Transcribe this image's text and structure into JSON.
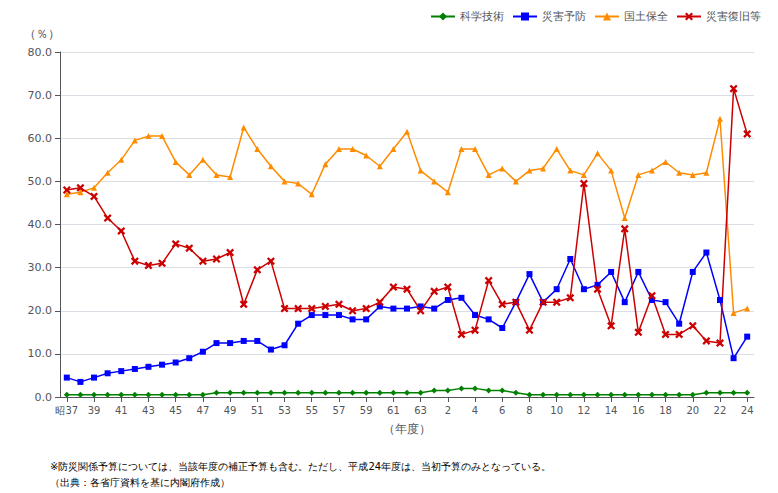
{
  "chart_data": {
    "type": "line",
    "xlabel": "（年度）",
    "ylabel": "（％）",
    "categories": [
      "昭37",
      null,
      "39",
      null,
      "41",
      null,
      "43",
      null,
      "45",
      null,
      "47",
      null,
      "49",
      null,
      "51",
      null,
      "53",
      null,
      "55",
      null,
      "57",
      null,
      "59",
      null,
      "61",
      null,
      "63",
      null,
      "2",
      null,
      "4",
      null,
      "6",
      null,
      "8",
      null,
      "10",
      null,
      "12",
      null,
      "14",
      null,
      "16",
      null,
      "18",
      null,
      "20",
      null,
      "22",
      null,
      "24"
    ],
    "ylim": [
      0.0,
      80.0
    ],
    "yticks": [
      {
        "value": 0.0,
        "label": "0.0"
      },
      {
        "value": 10.0,
        "label": "10.0"
      },
      {
        "value": 20.0,
        "label": "20.0"
      },
      {
        "value": 30.0,
        "label": "30.0"
      },
      {
        "value": 40.0,
        "label": "40.0"
      },
      {
        "value": 50.0,
        "label": "50.0"
      },
      {
        "value": 60.0,
        "label": "60.0"
      },
      {
        "value": 70.0,
        "label": "70.0"
      },
      {
        "value": 80.0,
        "label": "80.0"
      }
    ],
    "grid": true,
    "legend": "upper right",
    "annotations": [
      "※防災関係予算については、当該年度の補正予算も含む。ただし、平成24年度は、当初予算のみとなっている。",
      "（出典：各省庁資料を基に内閣府作成）"
    ],
    "series": [
      {
        "name": "科学技術",
        "color": "#008000",
        "marker": "diamond",
        "values": [
          0.5,
          0.5,
          0.5,
          0.5,
          0.5,
          0.5,
          0.5,
          0.5,
          0.5,
          0.5,
          0.5,
          1.0,
          1.0,
          1.0,
          1.0,
          1.0,
          1.0,
          1.0,
          1.0,
          1.0,
          1.0,
          1.0,
          1.0,
          1.0,
          1.0,
          1.0,
          1.0,
          1.5,
          1.5,
          2.0,
          2.0,
          1.5,
          1.5,
          1.0,
          0.5,
          0.5,
          0.5,
          0.5,
          0.5,
          0.5,
          0.5,
          0.5,
          0.5,
          0.5,
          0.5,
          0.5,
          0.5,
          1.0,
          1.0,
          1.0,
          1.0
        ]
      },
      {
        "name": "災害予防",
        "color": "#0000ff",
        "marker": "square",
        "values": [
          4.5,
          3.5,
          4.5,
          5.5,
          6.0,
          6.5,
          7.0,
          7.5,
          8.0,
          9.0,
          10.5,
          12.5,
          12.5,
          13.0,
          13.0,
          11.0,
          12.0,
          17.0,
          19.0,
          19.0,
          19.0,
          18.0,
          18.0,
          21.0,
          20.5,
          20.5,
          21.0,
          20.5,
          22.5,
          23.0,
          19.0,
          18.0,
          16.0,
          22.0,
          28.5,
          22.0,
          25.0,
          32.0,
          25.0,
          26.0,
          29.0,
          22.0,
          29.0,
          22.5,
          22.0,
          17.0,
          29.0,
          33.5,
          22.5,
          9.0,
          14.0
        ]
      },
      {
        "name": "国土保全",
        "color": "#ff8c00",
        "marker": "triangle",
        "values": [
          47.0,
          47.5,
          48.5,
          52.0,
          55.0,
          59.5,
          60.5,
          60.5,
          54.5,
          51.5,
          55.0,
          51.5,
          51.0,
          62.5,
          57.5,
          53.5,
          50.0,
          49.5,
          47.0,
          54.0,
          57.5,
          57.5,
          56.0,
          53.5,
          57.5,
          61.5,
          52.5,
          50.0,
          47.5,
          57.5,
          57.5,
          51.5,
          53.0,
          50.0,
          52.5,
          53.0,
          57.5,
          52.5,
          51.5,
          56.5,
          52.5,
          41.5,
          51.5,
          52.5,
          54.5,
          52.0,
          51.5,
          52.0,
          64.5,
          19.5,
          20.5
        ]
      },
      {
        "name": "災害復旧等",
        "color": "#cc0000",
        "marker": "x",
        "values": [
          48.0,
          48.5,
          46.5,
          41.5,
          38.5,
          31.5,
          30.5,
          31.0,
          35.5,
          34.5,
          31.5,
          32.0,
          33.5,
          21.5,
          29.5,
          31.5,
          20.5,
          20.5,
          20.5,
          21.0,
          21.5,
          20.0,
          20.5,
          22.0,
          25.5,
          25.0,
          20.0,
          24.5,
          25.5,
          14.5,
          15.5,
          27.0,
          21.5,
          22.0,
          15.5,
          22.0,
          22.0,
          23.0,
          49.5,
          25.0,
          16.5,
          39.0,
          15.0,
          23.5,
          14.5,
          14.5,
          16.5,
          13.0,
          12.5,
          71.5,
          61.0
        ]
      }
    ]
  }
}
